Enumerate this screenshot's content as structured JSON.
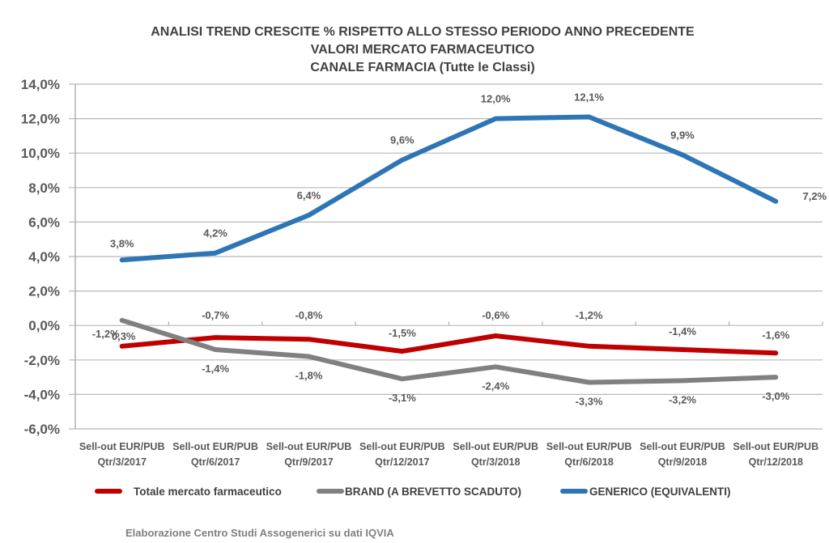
{
  "chart_data": {
    "type": "line",
    "title": [
      "ANALISI TREND CRESCITE % RISPETTO ALLO STESSO PERIODO ANNO PRECEDENTE",
      "VALORI MERCATO FARMACEUTICO",
      "CANALE FARMACIA (Tutte le Classi)"
    ],
    "xlabel": "",
    "ylabel": "",
    "categories": [
      [
        "Sell-out EUR/PUB",
        "Qtr/3/2017"
      ],
      [
        "Sell-out EUR/PUB",
        "Qtr/6/2017"
      ],
      [
        "Sell-out EUR/PUB",
        "Qtr/9/2017"
      ],
      [
        "Sell-out EUR/PUB",
        "Qtr/12/2017"
      ],
      [
        "Sell-out EUR/PUB",
        "Qtr/3/2018"
      ],
      [
        "Sell-out EUR/PUB",
        "Qtr/6/2018"
      ],
      [
        "Sell-out EUR/PUB",
        "Qtr/9/2018"
      ],
      [
        "Sell-out EUR/PUB",
        "Qtr/12/2018"
      ]
    ],
    "ylim": [
      -6,
      14
    ],
    "yticks": [
      14,
      12,
      10,
      8,
      6,
      4,
      2,
      0,
      -2,
      -4,
      -6
    ],
    "ytick_labels": [
      "14,0%",
      "12,0%",
      "10,0%",
      "8,0%",
      "6,0%",
      "4,0%",
      "2,0%",
      "0,0%",
      "-2,0%",
      "-4,0%",
      "-6,0%"
    ],
    "grid": true,
    "legend_position": "bottom",
    "series": [
      {
        "name": "Totale mercato farmaceutico",
        "color": "#c00000",
        "values": [
          -1.2,
          -0.7,
          -0.8,
          -1.5,
          -0.6,
          -1.2,
          -1.4,
          -1.6
        ],
        "labels": [
          "-1,2%",
          "-0,7%",
          "-0,8%",
          "-1,5%",
          "-0,6%",
          "-1,2%",
          "-1,4%",
          "-1,6%"
        ]
      },
      {
        "name": "BRAND (A BREVETTO SCADUTO)",
        "color": "#808080",
        "values": [
          0.3,
          -1.4,
          -1.8,
          -3.1,
          -2.4,
          -3.3,
          -3.2,
          -3.0
        ],
        "labels": [
          "0,3%",
          "-1,4%",
          "-1,8%",
          "-3,1%",
          "-2,4%",
          "-3,3%",
          "-3,2%",
          "-3,0%"
        ]
      },
      {
        "name": "GENERICO (EQUIVALENTI)",
        "color": "#2e75b6",
        "values": [
          3.8,
          4.2,
          6.4,
          9.6,
          12.0,
          12.1,
          9.9,
          7.2
        ],
        "labels": [
          "3,8%",
          "4,2%",
          "6,4%",
          "9,6%",
          "12,0%",
          "12,1%",
          "9,9%",
          "7,2%"
        ]
      }
    ],
    "footer": "Elaborazione Centro Studi Assogenerici su dati IQVIA"
  }
}
